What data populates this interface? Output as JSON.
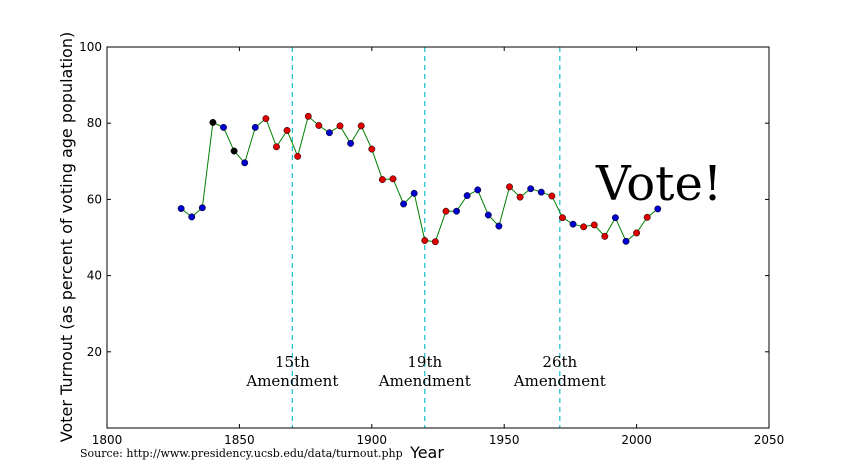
{
  "chart_data": {
    "type": "scatter",
    "xlabel": "Year",
    "ylabel": "Voter Turnout (as percent of voting age population)",
    "xlim": [
      1800,
      2050
    ],
    "ylim": [
      0,
      100
    ],
    "xticks": [
      "1800",
      "1850",
      "1900",
      "1950",
      "2000",
      "2050"
    ],
    "yticks": [
      "20",
      "40",
      "60",
      "80",
      "100"
    ],
    "grid": false,
    "line_color": "#008000",
    "colors": {
      "black": "#000000",
      "blue": "#0000cc",
      "red": "#dd0000",
      "vline": "#17becf"
    },
    "points": [
      {
        "x": 1828,
        "y": 57.6,
        "c": "blue"
      },
      {
        "x": 1832,
        "y": 55.4,
        "c": "blue"
      },
      {
        "x": 1836,
        "y": 57.8,
        "c": "blue"
      },
      {
        "x": 1840,
        "y": 80.2,
        "c": "black"
      },
      {
        "x": 1844,
        "y": 78.9,
        "c": "blue"
      },
      {
        "x": 1848,
        "y": 72.7,
        "c": "black"
      },
      {
        "x": 1852,
        "y": 69.6,
        "c": "blue"
      },
      {
        "x": 1856,
        "y": 78.9,
        "c": "blue"
      },
      {
        "x": 1860,
        "y": 81.2,
        "c": "red"
      },
      {
        "x": 1864,
        "y": 73.8,
        "c": "red"
      },
      {
        "x": 1868,
        "y": 78.1,
        "c": "red"
      },
      {
        "x": 1872,
        "y": 71.3,
        "c": "red"
      },
      {
        "x": 1876,
        "y": 81.8,
        "c": "red"
      },
      {
        "x": 1880,
        "y": 79.4,
        "c": "red"
      },
      {
        "x": 1884,
        "y": 77.5,
        "c": "blue"
      },
      {
        "x": 1888,
        "y": 79.3,
        "c": "red"
      },
      {
        "x": 1892,
        "y": 74.7,
        "c": "blue"
      },
      {
        "x": 1896,
        "y": 79.3,
        "c": "red"
      },
      {
        "x": 1900,
        "y": 73.2,
        "c": "red"
      },
      {
        "x": 1904,
        "y": 65.2,
        "c": "red"
      },
      {
        "x": 1908,
        "y": 65.4,
        "c": "red"
      },
      {
        "x": 1912,
        "y": 58.8,
        "c": "blue"
      },
      {
        "x": 1916,
        "y": 61.6,
        "c": "blue"
      },
      {
        "x": 1920,
        "y": 49.2,
        "c": "red"
      },
      {
        "x": 1924,
        "y": 48.9,
        "c": "red"
      },
      {
        "x": 1928,
        "y": 56.9,
        "c": "red"
      },
      {
        "x": 1932,
        "y": 56.9,
        "c": "blue"
      },
      {
        "x": 1936,
        "y": 61.0,
        "c": "blue"
      },
      {
        "x": 1940,
        "y": 62.5,
        "c": "blue"
      },
      {
        "x": 1944,
        "y": 55.9,
        "c": "blue"
      },
      {
        "x": 1948,
        "y": 53.0,
        "c": "blue"
      },
      {
        "x": 1952,
        "y": 63.3,
        "c": "red"
      },
      {
        "x": 1956,
        "y": 60.6,
        "c": "red"
      },
      {
        "x": 1960,
        "y": 62.8,
        "c": "blue"
      },
      {
        "x": 1964,
        "y": 61.9,
        "c": "blue"
      },
      {
        "x": 1968,
        "y": 60.9,
        "c": "red"
      },
      {
        "x": 1972,
        "y": 55.2,
        "c": "red"
      },
      {
        "x": 1976,
        "y": 53.5,
        "c": "blue"
      },
      {
        "x": 1980,
        "y": 52.8,
        "c": "red"
      },
      {
        "x": 1984,
        "y": 53.3,
        "c": "red"
      },
      {
        "x": 1988,
        "y": 50.3,
        "c": "red"
      },
      {
        "x": 1992,
        "y": 55.2,
        "c": "blue"
      },
      {
        "x": 1996,
        "y": 49.0,
        "c": "blue"
      },
      {
        "x": 2000,
        "y": 51.2,
        "c": "red"
      },
      {
        "x": 2004,
        "y": 55.3,
        "c": "red"
      },
      {
        "x": 2008,
        "y": 57.5,
        "c": "blue"
      }
    ],
    "vlines": [
      {
        "x": 1870,
        "line1": "15th",
        "line2": "Amendment"
      },
      {
        "x": 1920,
        "line1": "19th",
        "line2": "Amendment"
      },
      {
        "x": 1971,
        "line1": "26th",
        "line2": "Amendment"
      }
    ],
    "annotation": "Vote!",
    "source": "Source: http://www.presidency.ucsb.edu/data/turnout.php"
  }
}
